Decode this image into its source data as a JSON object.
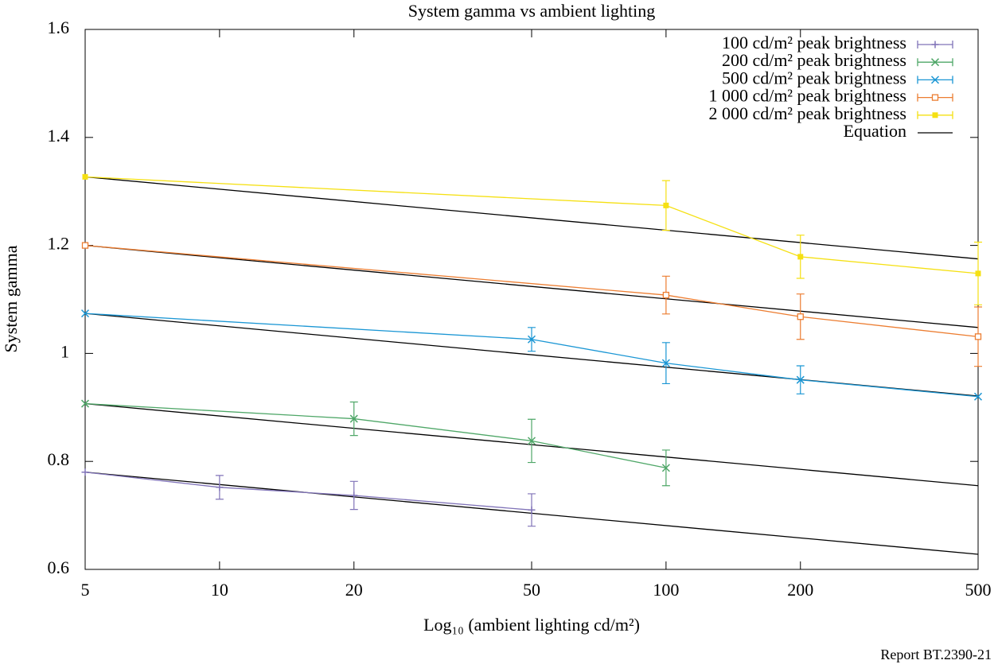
{
  "chart_data": {
    "type": "line",
    "log_x": true,
    "title": "System gamma vs ambient lighting",
    "x_label": "Log₁₀ (ambient lighting cd/m²)",
    "y_label": "System gamma",
    "note": "Report BT.2390-21",
    "xlim": [
      5,
      500
    ],
    "xticks": [
      5,
      10,
      20,
      50,
      100,
      200,
      500
    ],
    "ylim": [
      0.6,
      1.6
    ],
    "yticks": [
      0.6,
      0.8,
      1,
      1.2,
      1.4,
      1.6
    ],
    "legend": "top-right",
    "series": [
      {
        "name": "100 cd/m² peak brightness",
        "color": "#8073b8",
        "marker": "plus",
        "x": [
          5,
          10,
          20,
          50
        ],
        "values": [
          0.78,
          0.752,
          0.737,
          0.71
        ],
        "errors": [
          null,
          0.022,
          0.026,
          0.03
        ]
      },
      {
        "name": "200 cd/m² peak brightness",
        "color": "#4fa768",
        "marker": "cross",
        "x": [
          5,
          20,
          50,
          100
        ],
        "values": [
          0.907,
          0.879,
          0.838,
          0.788
        ],
        "errors": [
          null,
          0.031,
          0.04,
          0.033
        ]
      },
      {
        "name": "500 cd/m² peak brightness",
        "color": "#1a96d4",
        "marker": "cross",
        "x": [
          5,
          50,
          100,
          200,
          500
        ],
        "values": [
          1.074,
          1.026,
          0.982,
          0.951,
          0.92
        ],
        "errors": [
          null,
          0.022,
          0.038,
          0.026,
          null
        ]
      },
      {
        "name": "1 000 cd/m² peak brightness",
        "color": "#ec7d31",
        "marker": "open-square",
        "x": [
          5,
          100,
          200,
          500
        ],
        "values": [
          1.2,
          1.108,
          1.068,
          1.031
        ],
        "errors": [
          null,
          0.035,
          0.042,
          0.055
        ]
      },
      {
        "name": "2 000 cd/m² peak brightness",
        "color": "#f5e012",
        "marker": "filled-square",
        "x": [
          5,
          100,
          200,
          500
        ],
        "values": [
          1.327,
          1.274,
          1.179,
          1.148
        ],
        "errors": [
          null,
          0.046,
          0.04,
          0.058
        ]
      }
    ],
    "equation": {
      "name": "Equation",
      "color": "#000000",
      "x": [
        5,
        500
      ],
      "lines": [
        [
          0.78,
          0.628
        ],
        [
          0.907,
          0.755
        ],
        [
          1.074,
          0.921
        ],
        [
          1.2,
          1.048
        ],
        [
          1.327,
          1.175
        ]
      ]
    }
  }
}
